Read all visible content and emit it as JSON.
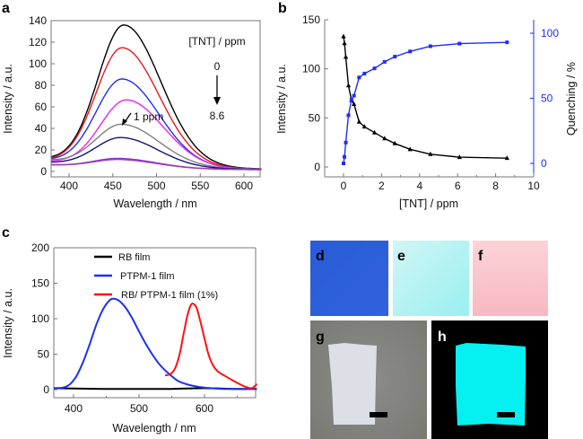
{
  "panel_labels": {
    "a": "a",
    "b": "b",
    "c": "c",
    "d": "d",
    "e": "e",
    "f": "f",
    "g": "g",
    "h": "h"
  },
  "chart_data": [
    {
      "id": "a",
      "type": "line",
      "xlabel": "Wavelength / nm",
      "ylabel": "Intensity / a.u.",
      "xlim": [
        380,
        620
      ],
      "ylim": [
        -5,
        145
      ],
      "xticks": [
        400,
        450,
        500,
        550,
        600
      ],
      "yticks": [
        0,
        20,
        40,
        60,
        80,
        100,
        120,
        140
      ],
      "annotations": {
        "legend_title": "[TNT] / ppm",
        "start": "0",
        "end": "8.6",
        "marker": "1 ppm"
      },
      "series": [
        {
          "name": "0 ppm",
          "color": "#000000",
          "peak_x": 463,
          "peak_y": 133,
          "base": 10
        },
        {
          "name": "red",
          "color": "#e8191c",
          "peak_x": 461,
          "peak_y": 112,
          "base": 9
        },
        {
          "name": "blue",
          "color": "#1f2ff0",
          "peak_x": 461,
          "peak_y": 83,
          "base": 9
        },
        {
          "name": "magenta",
          "color": "#ee22ee",
          "peak_x": 466,
          "peak_y": 64,
          "base": 8
        },
        {
          "name": "1 ppm",
          "color": "#808080",
          "peak_x": 461,
          "peak_y": 41,
          "base": 9
        },
        {
          "name": "navy",
          "color": "#12127a",
          "peak_x": 460,
          "peak_y": 29,
          "base": 7
        },
        {
          "name": "purple",
          "color": "#8a2be2",
          "peak_x": 458,
          "peak_y": 10,
          "base": 5
        },
        {
          "name": "violet",
          "color": "#9b3fa8",
          "peak_x": 458,
          "peak_y": 9,
          "base": 5
        }
      ]
    },
    {
      "id": "b",
      "type": "line",
      "xlabel": "[TNT] / ppm",
      "ylabel": "Intensity / a.u.",
      "y2label": "Quenching / %",
      "xlim": [
        -1,
        10
      ],
      "ylim": [
        -10,
        150
      ],
      "y2lim": [
        -12,
        108
      ],
      "xticks": [
        0,
        2,
        4,
        6,
        8,
        10
      ],
      "yticks": [
        0,
        50,
        100,
        150
      ],
      "y2ticks": [
        0,
        50,
        100
      ],
      "series": [
        {
          "name": "Intensity",
          "axis": "left",
          "color": "#000000",
          "marker": "triangle",
          "x": [
            0,
            0.05,
            0.12,
            0.26,
            0.42,
            0.55,
            0.82,
            1.1,
            1.63,
            2.16,
            2.7,
            3.5,
            4.57,
            6.1,
            8.6
          ],
          "y": [
            133,
            126,
            112,
            83,
            68,
            64,
            46,
            41,
            35,
            29,
            24,
            18,
            13,
            10,
            9
          ]
        },
        {
          "name": "Quenching",
          "axis": "right",
          "color": "#1f2ff0",
          "marker": "square",
          "x": [
            0,
            0.05,
            0.12,
            0.26,
            0.42,
            0.55,
            0.82,
            1.1,
            1.63,
            2.16,
            2.7,
            3.5,
            4.57,
            6.1,
            8.6
          ],
          "y": [
            0,
            5,
            16,
            37,
            49,
            52,
            66,
            69,
            73,
            78,
            82,
            86,
            90,
            92,
            93
          ]
        }
      ]
    },
    {
      "id": "c",
      "type": "line",
      "xlabel": "Wavelength / nm",
      "ylabel": "Intensity / a.u.",
      "xlim": [
        370,
        680
      ],
      "ylim": [
        -8,
        200
      ],
      "xticks": [
        400,
        500,
        600
      ],
      "yticks": [
        0,
        50,
        100,
        150,
        200
      ],
      "legend": [
        "RB film",
        "PTPM-1 film",
        "RB/ PTPM-1 film (1%)"
      ],
      "legend_position": "top-center",
      "series": [
        {
          "name": "RB film",
          "color": "#000000",
          "x": [
            370,
            400,
            450,
            500,
            550,
            600,
            650,
            680
          ],
          "y": [
            2,
            1.5,
            1,
            1,
            1,
            2,
            1,
            1
          ]
        },
        {
          "name": "PTPM-1 film",
          "color": "#1f2ff0",
          "x": [
            370,
            385,
            395,
            405,
            415,
            425,
            435,
            445,
            455,
            462,
            470,
            480,
            490,
            500,
            510,
            520,
            530,
            540,
            550,
            560,
            575,
            590,
            610,
            630,
            650,
            680
          ],
          "y": [
            2,
            3,
            8,
            20,
            40,
            65,
            92,
            113,
            126,
            128,
            125,
            115,
            100,
            82,
            65,
            50,
            37,
            27,
            19,
            12,
            7,
            4,
            2,
            1,
            1,
            1
          ]
        },
        {
          "name": "RB/ PTPM-1 film (1%)",
          "color": "#ff1010",
          "x": [
            540,
            548,
            555,
            562,
            568,
            574,
            579,
            583,
            588,
            594,
            600,
            606,
            612,
            620,
            630,
            645,
            660,
            672,
            680
          ],
          "y": [
            20,
            22,
            30,
            50,
            78,
            105,
            119,
            121,
            115,
            95,
            72,
            50,
            36,
            26,
            20,
            12,
            5,
            2,
            8
          ]
        }
      ]
    }
  ],
  "photos": {
    "d": {
      "color": "#2c5fd9"
    },
    "e": {
      "color": "#b4f1f0"
    },
    "f": {
      "color": "#f8bcc4"
    },
    "g": {
      "bg": "#8a8a86",
      "film": "#dadde3"
    },
    "h": {
      "bg": "#000000",
      "film": "#05f0f0"
    }
  }
}
